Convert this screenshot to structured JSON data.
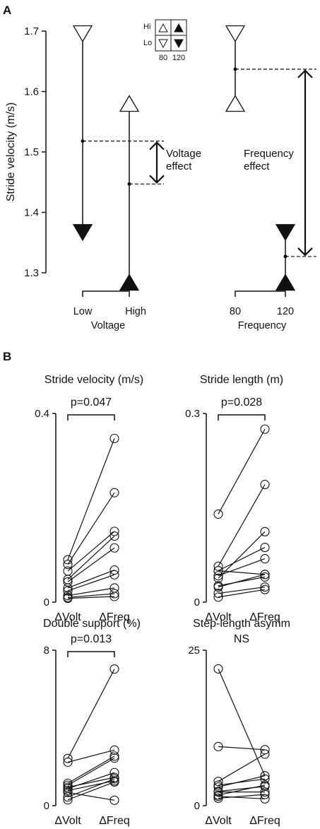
{
  "panel_a": {
    "letter": "A",
    "ylabel": "Stride velocity (m/s)",
    "y_ticks": [
      "1.3",
      "1.4",
      "1.5",
      "1.6",
      "1.7"
    ],
    "voltage_group": {
      "label": "Voltage",
      "low": "Low",
      "high": "High"
    },
    "frequency_group": {
      "label": "Frequency",
      "f80": "80",
      "f120": "120"
    },
    "voltage_effect": "Voltage\neffect",
    "frequency_effect": "Frequency\neffect",
    "legend": {
      "hi": "Hi",
      "lo": "Lo",
      "c80": "80",
      "c120": "120"
    }
  },
  "panel_b": {
    "letter": "B",
    "x_labels": [
      "ΔVolt",
      "ΔFreq"
    ]
  },
  "chart_data": [
    {
      "type": "scatter",
      "title": "",
      "ylabel": "Stride velocity (m/s)",
      "ylim": [
        1.3,
        1.7
      ],
      "groups": [
        {
          "name": "Voltage",
          "categories": [
            "Low",
            "High"
          ],
          "points": [
            {
              "category": "Low",
              "symbol": "triangle-down-open",
              "y": 1.683
            },
            {
              "category": "Low",
              "symbol": "triangle-down-filled",
              "y": 1.354
            },
            {
              "category": "Low",
              "symbol": "mean-dot",
              "y": 1.518
            },
            {
              "category": "High",
              "symbol": "triangle-up-open",
              "y": 1.593
            },
            {
              "category": "High",
              "symbol": "triangle-up-filled",
              "y": 1.297
            },
            {
              "category": "High",
              "symbol": "mean-dot",
              "y": 1.447
            }
          ],
          "annotation": "Voltage effect"
        },
        {
          "name": "Frequency",
          "categories": [
            "80",
            "120"
          ],
          "points": [
            {
              "category": "80",
              "symbol": "triangle-down-open",
              "y": 1.683
            },
            {
              "category": "80",
              "symbol": "triangle-up-open",
              "y": 1.593
            },
            {
              "category": "80",
              "symbol": "mean-dot",
              "y": 1.637
            },
            {
              "category": "120",
              "symbol": "triangle-down-filled",
              "y": 1.354
            },
            {
              "category": "120",
              "symbol": "triangle-up-filled",
              "y": 1.297
            },
            {
              "category": "120",
              "symbol": "mean-dot",
              "y": 1.327
            }
          ],
          "annotation": "Frequency effect"
        }
      ]
    },
    {
      "type": "line",
      "title": "Stride velocity (m/s)",
      "categories": [
        "ΔVolt",
        "ΔFreq"
      ],
      "ylim": [
        0,
        0.4
      ],
      "y_ticks": [
        "0",
        "0.4"
      ],
      "significance": "p=0.047",
      "pairs": [
        [
          0.09,
          0.347
        ],
        [
          0.08,
          0.232
        ],
        [
          0.066,
          0.15
        ],
        [
          0.048,
          0.14
        ],
        [
          0.043,
          0.115
        ],
        [
          0.03,
          0.068
        ],
        [
          0.024,
          0.058
        ],
        [
          0.014,
          0.03
        ],
        [
          0.01,
          0.018
        ],
        [
          0.008,
          0.012
        ]
      ]
    },
    {
      "type": "line",
      "title": "Stride length (m)",
      "categories": [
        "ΔVolt",
        "ΔFreq"
      ],
      "ylim": [
        0,
        0.3
      ],
      "y_ticks": [
        "0",
        "0.3"
      ],
      "significance": "p=0.028",
      "pairs": [
        [
          0.14,
          0.275
        ],
        [
          0.057,
          0.187
        ],
        [
          0.05,
          0.087
        ],
        [
          0.05,
          0.044
        ],
        [
          0.042,
          0.069
        ],
        [
          0.038,
          0.112
        ],
        [
          0.026,
          0.04
        ],
        [
          0.024,
          0.044
        ],
        [
          0.014,
          0.024
        ],
        [
          0.008,
          0.02
        ]
      ]
    },
    {
      "type": "line",
      "title": "Double support (%)",
      "categories": [
        "ΔVolt",
        "ΔFreq"
      ],
      "ylim": [
        0,
        8
      ],
      "y_ticks": [
        "0",
        "8"
      ],
      "significance": "p=0.013",
      "pairs": [
        [
          2.43,
          7.03
        ],
        [
          2.24,
          2.86
        ],
        [
          1.15,
          2.55
        ],
        [
          1.05,
          2.45
        ],
        [
          0.95,
          1.45
        ],
        [
          0.88,
          1.7
        ],
        [
          0.78,
          1.28
        ],
        [
          0.45,
          1.38
        ],
        [
          0.3,
          1.22
        ],
        [
          0.68,
          0.28
        ]
      ]
    },
    {
      "type": "line",
      "title": "Step-length asymm",
      "categories": [
        "ΔVolt",
        "ΔFreq"
      ],
      "ylim": [
        0,
        25
      ],
      "y_ticks": [
        "0",
        "25"
      ],
      "significance": "NS",
      "pairs": [
        [
          22.0,
          4.8
        ],
        [
          9.5,
          9.0
        ],
        [
          3.9,
          8.3
        ],
        [
          3.3,
          4.3
        ],
        [
          3.0,
          4.8
        ],
        [
          2.3,
          3.1
        ],
        [
          2.2,
          2.2
        ],
        [
          1.7,
          3.3
        ],
        [
          1.5,
          1.1
        ],
        [
          1.2,
          1.8
        ]
      ]
    }
  ]
}
